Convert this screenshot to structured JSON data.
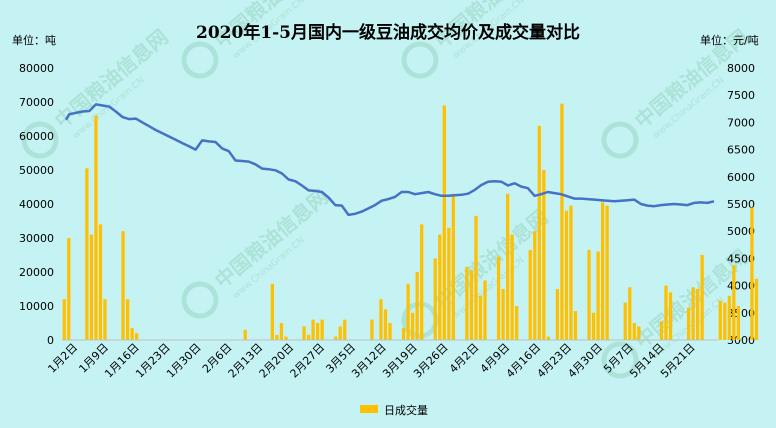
{
  "chart_data": {
    "type": "bar",
    "title": "2020年1-5月国内一级豆油成交均价及成交量对比",
    "left_unit": "单位：吨",
    "right_unit": "单位：元/吨",
    "y_left": {
      "min": 0,
      "max": 80000,
      "ticks": [
        "0",
        "10000",
        "20000",
        "30000",
        "40000",
        "50000",
        "60000",
        "70000",
        "80000"
      ]
    },
    "y_right": {
      "min": 3000,
      "max": 8000,
      "ticks": [
        "3000",
        "3500",
        "4000",
        "4500",
        "5000",
        "5500",
        "6000",
        "6500",
        "7000",
        "7500",
        "8000"
      ]
    },
    "x_labels": [
      "1月2日",
      "1月9日",
      "1月16日",
      "1月23日",
      "1月30日",
      "2月6日",
      "2月13日",
      "2月20日",
      "2月27日",
      "3月5日",
      "3月12日",
      "3月19日",
      "3月26日",
      "4月2日",
      "4月9日",
      "4月16日",
      "4月23日",
      "4月30日",
      "5月7日",
      "5月14日",
      "5月21日"
    ],
    "series": [
      {
        "name": "日成交量",
        "type": "bar",
        "color": "#ffc000",
        "values": [
          12000,
          30000,
          0,
          0,
          0,
          50500,
          31000,
          66000,
          34000,
          12000,
          0,
          0,
          0,
          32000,
          12000,
          3500,
          2000,
          0,
          0,
          0,
          0,
          0,
          0,
          0,
          0,
          0,
          0,
          0,
          0,
          0,
          0,
          0,
          0,
          0,
          0,
          0,
          0,
          0,
          0,
          0,
          3000,
          0,
          0,
          0,
          0,
          0,
          16500,
          1500,
          5000,
          1000,
          0,
          0,
          0,
          4000,
          1500,
          6000,
          5000,
          6000,
          0,
          0,
          1000,
          4000,
          6000,
          0,
          0,
          0,
          0,
          0,
          6000,
          0,
          12000,
          9000,
          5000,
          0,
          0,
          3500,
          16500,
          8000,
          20000,
          34000,
          0,
          0,
          24000,
          31000,
          69000,
          33000,
          43000,
          0,
          0,
          21500,
          20500,
          36500,
          13000,
          17500,
          0,
          0,
          24500,
          15000,
          43000,
          31000,
          10000,
          0,
          0,
          26500,
          32000,
          63000,
          50000,
          1000,
          0,
          15000,
          69500,
          38000,
          39500,
          8500,
          0,
          0,
          26500,
          8000,
          26000,
          40500,
          39500,
          0,
          0,
          0,
          11000,
          15500,
          5000,
          4000,
          0,
          0,
          0,
          0,
          5500,
          16000,
          14000,
          0,
          0,
          0,
          9500,
          15500,
          15000,
          25000,
          0,
          0,
          0,
          11500,
          11000,
          13000,
          22000,
          10000,
          0,
          0,
          39000,
          18000
        ]
      },
      {
        "name": "成交均价",
        "type": "line",
        "color": "#4472c4",
        "points": [
          [
            0,
            7050
          ],
          [
            1,
            7150
          ],
          [
            5,
            7200
          ],
          [
            7,
            7210
          ],
          [
            9,
            7330
          ],
          [
            11,
            7310
          ],
          [
            13,
            7290
          ],
          [
            15,
            7200
          ],
          [
            17,
            7100
          ],
          [
            19,
            7060
          ],
          [
            21,
            7070
          ],
          [
            23,
            7000
          ],
          [
            25,
            6930
          ],
          [
            27,
            6860
          ],
          [
            29,
            6800
          ],
          [
            31,
            6740
          ],
          [
            33,
            6680
          ],
          [
            35,
            6620
          ],
          [
            37,
            6560
          ],
          [
            39,
            6500
          ],
          [
            41,
            6670
          ],
          [
            43,
            6650
          ],
          [
            45,
            6640
          ],
          [
            47,
            6520
          ],
          [
            49,
            6470
          ],
          [
            51,
            6300
          ],
          [
            53,
            6290
          ],
          [
            55,
            6280
          ],
          [
            57,
            6230
          ],
          [
            59,
            6150
          ],
          [
            61,
            6140
          ],
          [
            63,
            6120
          ],
          [
            65,
            6060
          ],
          [
            67,
            5950
          ],
          [
            69,
            5920
          ],
          [
            71,
            5840
          ],
          [
            73,
            5750
          ],
          [
            75,
            5740
          ],
          [
            77,
            5720
          ],
          [
            79,
            5620
          ],
          [
            81,
            5480
          ],
          [
            83,
            5470
          ],
          [
            85,
            5300
          ],
          [
            87,
            5320
          ],
          [
            89,
            5360
          ],
          [
            91,
            5420
          ],
          [
            93,
            5480
          ],
          [
            95,
            5560
          ],
          [
            97,
            5590
          ],
          [
            99,
            5630
          ],
          [
            101,
            5720
          ],
          [
            103,
            5720
          ],
          [
            105,
            5680
          ],
          [
            107,
            5700
          ],
          [
            109,
            5720
          ],
          [
            111,
            5680
          ],
          [
            113,
            5650
          ],
          [
            115,
            5650
          ],
          [
            117,
            5660
          ],
          [
            119,
            5670
          ],
          [
            121,
            5690
          ],
          [
            123,
            5760
          ],
          [
            125,
            5850
          ],
          [
            127,
            5910
          ],
          [
            129,
            5920
          ],
          [
            131,
            5910
          ],
          [
            133,
            5840
          ],
          [
            135,
            5880
          ],
          [
            137,
            5820
          ],
          [
            139,
            5790
          ],
          [
            141,
            5650
          ],
          [
            143,
            5680
          ],
          [
            145,
            5720
          ],
          [
            147,
            5700
          ],
          [
            149,
            5680
          ],
          [
            151,
            5640
          ],
          [
            153,
            5600
          ],
          [
            155,
            5600
          ],
          [
            157,
            5590
          ],
          [
            159,
            5580
          ],
          [
            161,
            5570
          ],
          [
            163,
            5560
          ],
          [
            165,
            5550
          ],
          [
            167,
            5560
          ],
          [
            169,
            5570
          ],
          [
            171,
            5580
          ],
          [
            173,
            5500
          ],
          [
            175,
            5470
          ],
          [
            177,
            5460
          ],
          [
            179,
            5480
          ],
          [
            181,
            5490
          ],
          [
            183,
            5500
          ],
          [
            185,
            5490
          ],
          [
            187,
            5480
          ],
          [
            189,
            5520
          ],
          [
            191,
            5530
          ],
          [
            193,
            5520
          ],
          [
            195,
            5550
          ]
        ]
      }
    ],
    "n_bars": 145,
    "legend": {
      "position": "bottom-center"
    },
    "grid": false,
    "watermark": "中国粮油信息网 www.ChinaGrain.CN"
  }
}
